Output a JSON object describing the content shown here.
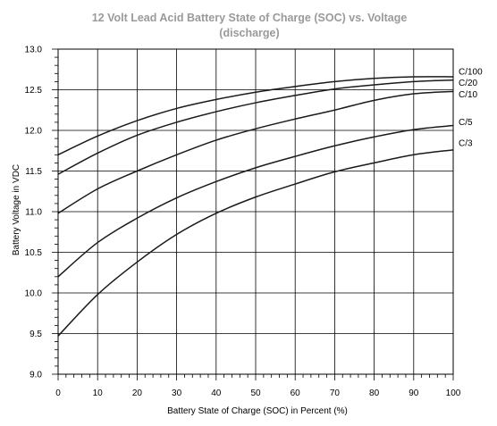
{
  "chart_data": {
    "type": "line",
    "title": "12 Volt Lead Acid Battery State of Charge (SOC) vs. Voltage",
    "subtitle": "(discharge)",
    "xlabel": "Battery State of Charge (SOC) in Percent (%)",
    "ylabel": "Battery Voltage in VDC",
    "xlim": [
      0,
      100
    ],
    "ylim": [
      9.0,
      13.0
    ],
    "xticks": [
      "0",
      "10",
      "20",
      "30",
      "40",
      "50",
      "60",
      "70",
      "80",
      "90",
      "100"
    ],
    "yticks": [
      "9.0",
      "9.5",
      "10.0",
      "10.5",
      "11.0",
      "11.5",
      "12.0",
      "12.5",
      "13.0"
    ],
    "grid": true,
    "x": [
      0,
      10,
      20,
      30,
      40,
      50,
      60,
      70,
      80,
      90,
      100
    ],
    "series": [
      {
        "name": "C/100",
        "values": [
          11.7,
          11.93,
          12.12,
          12.27,
          12.38,
          12.47,
          12.54,
          12.6,
          12.64,
          12.66,
          12.66
        ]
      },
      {
        "name": "C/20",
        "values": [
          11.46,
          11.72,
          11.94,
          12.1,
          12.23,
          12.34,
          12.43,
          12.51,
          12.56,
          12.6,
          12.62
        ]
      },
      {
        "name": "C/10",
        "values": [
          10.98,
          11.28,
          11.5,
          11.7,
          11.88,
          12.02,
          12.14,
          12.25,
          12.37,
          12.45,
          12.48
        ]
      },
      {
        "name": "C/5",
        "values": [
          10.2,
          10.62,
          10.92,
          11.17,
          11.37,
          11.54,
          11.68,
          11.81,
          11.92,
          12.01,
          12.06
        ]
      },
      {
        "name": "C/3",
        "values": [
          9.47,
          9.98,
          10.38,
          10.72,
          10.98,
          11.18,
          11.34,
          11.49,
          11.6,
          11.7,
          11.76
        ]
      }
    ]
  }
}
